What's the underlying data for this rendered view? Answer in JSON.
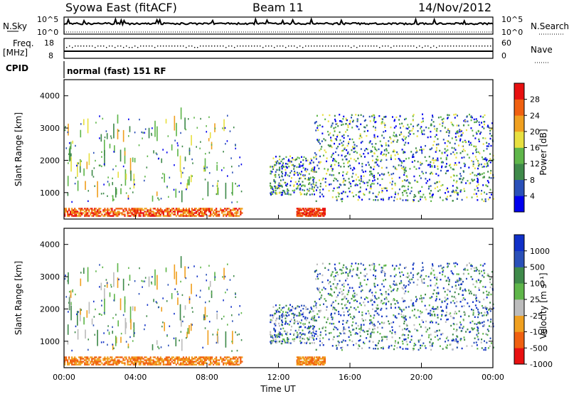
{
  "header": {
    "station": "Syowa East (fitACF)",
    "beam": "Beam 11",
    "date": "14/Nov/2012"
  },
  "strip_labels": {
    "nsky": "N.Sky",
    "nsky_top": "10^5",
    "nsky_bottom": "10^0",
    "nsearch": "N.Search",
    "nsearch_top": "10^5",
    "nsearch_bottom": "10^0",
    "freq": "Freq.",
    "freq_unit": "[MHz]",
    "freq_top": "18",
    "freq_bottom": "8",
    "nave": "Nave",
    "nave_top": "60",
    "nave_bottom": "0",
    "cpid": "CPID",
    "mode": "normal (fast) 151 RF"
  },
  "colors": {
    "power": [
      "#0000ee",
      "#2a50b8",
      "#3f8a4a",
      "#5fb64a",
      "#e8e040",
      "#f0a020",
      "#f06010",
      "#e81010"
    ],
    "velocity": [
      "#e81010",
      "#f06010",
      "#f0a020",
      "#bcbcbc",
      "#5fb64a",
      "#3f8a4a",
      "#2a50b8",
      "#1030c8"
    ]
  },
  "chart_data": [
    {
      "type": "heatmap",
      "name_key": "power",
      "ylabel": "Slant Range [km]",
      "yticks": [
        "1000",
        "2000",
        "3000",
        "4000"
      ],
      "ylim": [
        180,
        4500
      ],
      "xlim": [
        0,
        24
      ],
      "colorbar_label": "Power [dB]",
      "colorbar_ticks": [
        "4",
        "8",
        "12",
        "16",
        "20",
        "24",
        "28"
      ]
    },
    {
      "type": "heatmap",
      "name_key": "velocity",
      "ylabel": "Slant Range [km]",
      "yticks": [
        "1000",
        "2000",
        "3000",
        "4000"
      ],
      "ylim": [
        180,
        4500
      ],
      "xlim": [
        0,
        24
      ],
      "xlabel": "Time UT",
      "xticks": [
        "00:00",
        "04:00",
        "08:00",
        "12:00",
        "16:00",
        "20:00",
        "00:00"
      ],
      "colorbar_label": "Velocity [m s⁻¹]",
      "colorbar_ticks": [
        "1000",
        "500",
        "100",
        "25",
        "-25",
        "-100",
        "-500",
        "-1000"
      ]
    }
  ]
}
